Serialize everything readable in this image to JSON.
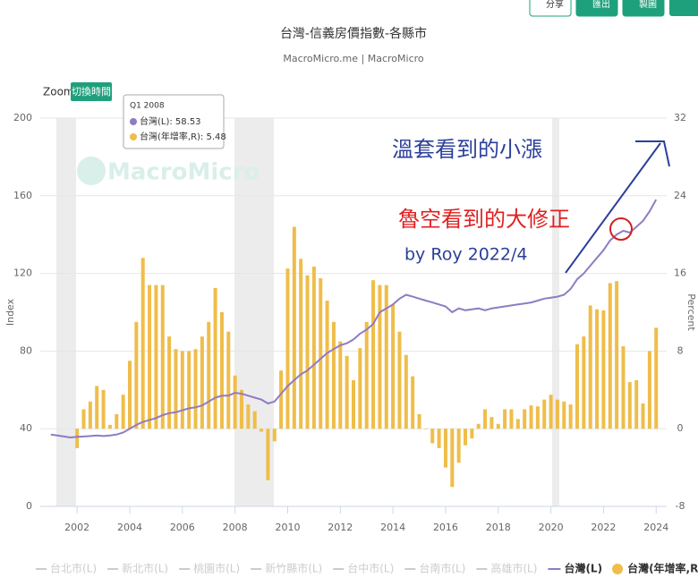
{
  "chart_data": {
    "type": "combo",
    "title": "台灣-信義房價指數-各縣市",
    "subtitle": "MacroMicro.me | MacroMicro",
    "buttons": [
      "分享",
      "匯出",
      "製圖"
    ],
    "zoom_label": "Zoom",
    "zoom_button": "切換時間",
    "watermark": "MacroMicro",
    "y_label": "Index",
    "y2_label": "Percent",
    "annotations": [
      "溫套看到的小漲",
      "魯空看到的大修正",
      "by Roy 2022/4"
    ],
    "tooltip": {
      "title": "Q1 2008",
      "items": [
        "台灣(L): 58.53",
        "台灣(年增率,R): 5.48"
      ]
    },
    "legend_inactive": [
      "台北市(L)",
      "新北市(L)",
      "桃園市(L)",
      "新竹縣市(L)",
      "台中市(L)",
      "台南市(L)",
      "高雄市(L)"
    ],
    "x": [
      2001,
      2001.25,
      2001.5,
      2001.75,
      2002,
      2002.25,
      2002.5,
      2002.75,
      2003,
      2003.25,
      2003.5,
      2003.75,
      2004,
      2004.25,
      2004.5,
      2004.75,
      2005,
      2005.25,
      2005.5,
      2005.75,
      2006,
      2006.25,
      2006.5,
      2006.75,
      2007,
      2007.25,
      2007.5,
      2007.75,
      2008,
      2008.25,
      2008.5,
      2008.75,
      2009,
      2009.25,
      2009.5,
      2009.75,
      2010,
      2010.25,
      2010.5,
      2010.75,
      2011,
      2011.25,
      2011.5,
      2011.75,
      2012,
      2012.25,
      2012.5,
      2012.75,
      2013,
      2013.25,
      2013.5,
      2013.75,
      2014,
      2014.25,
      2014.5,
      2014.75,
      2015,
      2015.25,
      2015.5,
      2015.75,
      2016,
      2016.25,
      2016.5,
      2016.75,
      2017,
      2017.25,
      2017.5,
      2017.75,
      2018,
      2018.25,
      2018.5,
      2018.75,
      2019,
      2019.25,
      2019.5,
      2019.75,
      2020,
      2020.25,
      2020.5,
      2020.75,
      2021,
      2021.25,
      2021.5,
      2021.75,
      2022,
      2022.25,
      2022.5,
      2022.75,
      2023,
      2023.25,
      2023.5,
      2023.75,
      2024
    ],
    "xlim": [
      2000.6,
      2024.4
    ],
    "xticks": [
      2002,
      2004,
      2006,
      2008,
      2010,
      2012,
      2014,
      2016,
      2018,
      2020,
      2022,
      2024
    ],
    "ylim": [
      0,
      200
    ],
    "yticks": [
      0,
      40,
      80,
      120,
      160,
      200
    ],
    "y2lim": [
      -8,
      32
    ],
    "y2ticks": [
      -8,
      0,
      8,
      16,
      24,
      32
    ],
    "series": [
      {
        "name": "台灣(年增率,R)",
        "type": "bar",
        "axis": "y2",
        "color": "#efbd4a",
        "values": [
          null,
          null,
          null,
          null,
          -2,
          2,
          2.8,
          4.4,
          4,
          0.4,
          1.5,
          3.5,
          7,
          11,
          17.6,
          14.8,
          14.8,
          14.8,
          9.5,
          8.2,
          8,
          8,
          8.2,
          9.5,
          11,
          14.5,
          12,
          10,
          5.48,
          4,
          2.5,
          1.8,
          -0.3,
          -5.3,
          -1.3,
          6,
          16.5,
          20.8,
          17.5,
          15.8,
          16.7,
          15.5,
          13.2,
          11,
          9,
          7.5,
          5,
          8.3,
          11,
          15.3,
          14.8,
          14.8,
          12.8,
          10,
          7.6,
          5.4,
          1.5,
          0,
          -1.5,
          -2,
          -4,
          -6,
          -3.5,
          -1.7,
          -1,
          0.5,
          2,
          1.2,
          0.5,
          2,
          2,
          1,
          2,
          2.4,
          2.3,
          3,
          3.5,
          3,
          2.8,
          2.5,
          8.7,
          9.5,
          12.7,
          12.3,
          12.2,
          15,
          15.2,
          8.5,
          4.8,
          5,
          2.6,
          8,
          10.4
        ]
      },
      {
        "name": "台灣(L)",
        "type": "line",
        "color": "#8e7cc3",
        "values": [
          37,
          36.5,
          36,
          35.5,
          35.8,
          36,
          36.2,
          36.5,
          36.2,
          36.5,
          37,
          38,
          40,
          42,
          43.5,
          44.5,
          45.5,
          47,
          48,
          48.5,
          49.5,
          50.5,
          51,
          52,
          54,
          56,
          57,
          57,
          58.53,
          58,
          57,
          56,
          55,
          53,
          54,
          58,
          62,
          65,
          68,
          70,
          73,
          76,
          79,
          81,
          83,
          84,
          86,
          89,
          91,
          94,
          100,
          102,
          104,
          107,
          109,
          108,
          107,
          106,
          105,
          104,
          103,
          100,
          102,
          101,
          101.5,
          102,
          101,
          102,
          102.5,
          103,
          103.5,
          104,
          104.5,
          105,
          106,
          107,
          107.5,
          108,
          109,
          112,
          117,
          120,
          124,
          128,
          132,
          137,
          140,
          142,
          141,
          144,
          147,
          152,
          158
        ]
      }
    ]
  }
}
